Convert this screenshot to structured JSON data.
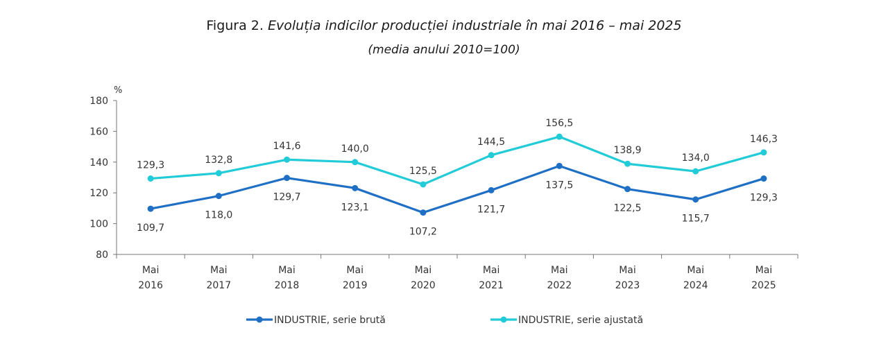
{
  "header": {
    "figure_label": "Figura 2.",
    "title": "Evoluția indicilor producției industriale în mai 2016 – mai 2025",
    "subtitle": "(media anului 2010=100)"
  },
  "chart_data": {
    "type": "line",
    "title": "Evoluția indicilor producției industriale în mai 2016 – mai 2025",
    "subtitle": "(media anului 2010=100)",
    "ylabel": "%",
    "xlabel": "",
    "ylim": [
      80,
      180
    ],
    "yticks": [
      80,
      100,
      120,
      140,
      160,
      180
    ],
    "grid": false,
    "legend_position": "bottom",
    "categories": [
      [
        "Mai",
        "2016"
      ],
      [
        "Mai",
        "2017"
      ],
      [
        "Mai",
        "2018"
      ],
      [
        "Mai",
        "2019"
      ],
      [
        "Mai",
        "2020"
      ],
      [
        "Mai",
        "2021"
      ],
      [
        "Mai",
        "2022"
      ],
      [
        "Mai",
        "2023"
      ],
      [
        "Mai",
        "2024"
      ],
      [
        "Mai",
        "2025"
      ]
    ],
    "series": [
      {
        "name": "INDUSTRIE, serie brută",
        "color": "#1f6fc5",
        "values": [
          109.7,
          118.0,
          129.7,
          123.1,
          107.2,
          121.7,
          137.5,
          122.5,
          115.7,
          129.3
        ],
        "labels": [
          "109,7",
          "118,0",
          "129,7",
          "123,1",
          "107,2",
          "121,7",
          "137,5",
          "122,5",
          "115,7",
          "129,3"
        ],
        "label_position": "below"
      },
      {
        "name": "INDUSTRIE, serie ajustată",
        "color": "#22cbd8",
        "values": [
          129.3,
          132.8,
          141.6,
          140.0,
          125.5,
          144.5,
          156.5,
          138.9,
          134.0,
          146.3
        ],
        "labels": [
          "129,3",
          "132,8",
          "141,6",
          "140,0",
          "125,5",
          "144,5",
          "156,5",
          "138,9",
          "134,0",
          "146,3"
        ],
        "label_position": "above"
      }
    ]
  }
}
